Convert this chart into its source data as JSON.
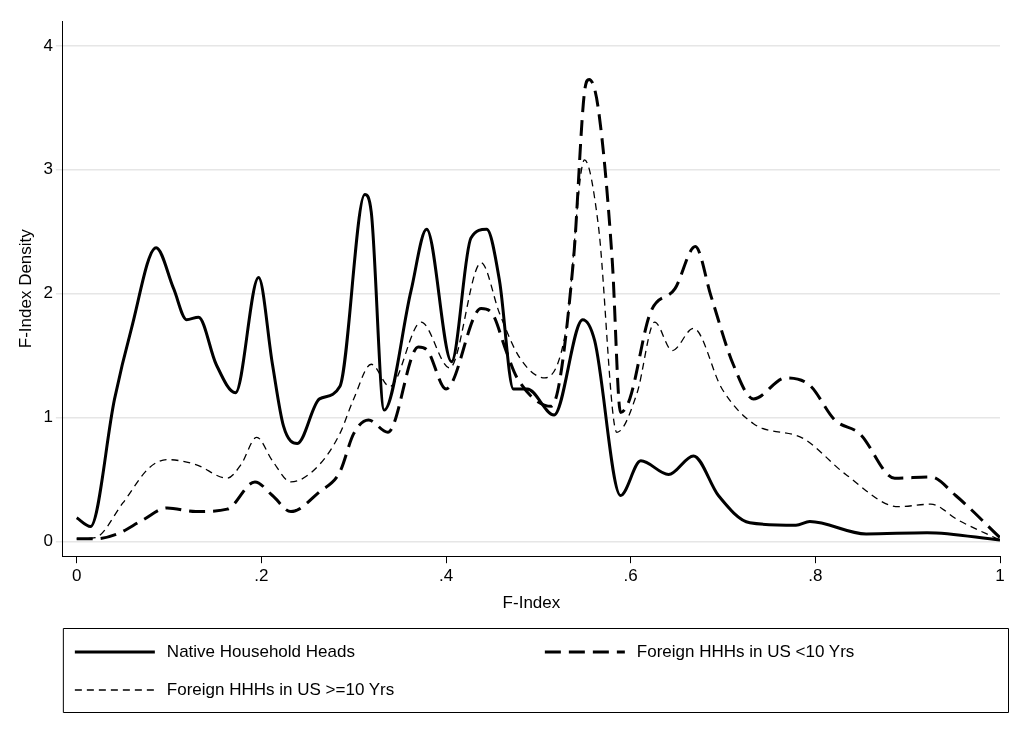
{
  "chart_data": {
    "type": "line",
    "xlabel": "F-Index",
    "ylabel": "F-Index Density",
    "xlim": [
      -0.015,
      1
    ],
    "ylim": [
      -0.12,
      4.2
    ],
    "xticks": [
      0,
      {
        "value": 0.2,
        "label": ".2"
      },
      {
        "value": 0.4,
        "label": ".4"
      },
      {
        "value": 0.6,
        "label": ".6"
      },
      {
        "value": 0.8,
        "label": ".8"
      },
      1
    ],
    "yticks": [
      0,
      1,
      2,
      3,
      4
    ],
    "grid": "y",
    "legend": "bottom",
    "marker": "none",
    "series": [
      {
        "name": "Native Household Heads",
        "color": "#000000",
        "line_style": "solid",
        "x": [
          0,
          0.015,
          0.041,
          0.059,
          0.086,
          0.105,
          0.119,
          0.132,
          0.151,
          0.172,
          0.197,
          0.212,
          0.224,
          0.239,
          0.263,
          0.285,
          0.312,
          0.319,
          0.333,
          0.362,
          0.379,
          0.406,
          0.427,
          0.444,
          0.458,
          0.473,
          0.488,
          0.517,
          0.548,
          0.561,
          0.589,
          0.611,
          0.641,
          0.668,
          0.695,
          0.729,
          0.779,
          0.794,
          0.855,
          0.921,
          1.0
        ],
        "values": [
          0.19,
          0.12,
          1.15,
          1.71,
          2.37,
          2.04,
          1.79,
          1.81,
          1.43,
          1.2,
          2.13,
          1.43,
          0.93,
          0.79,
          1.15,
          1.25,
          2.8,
          2.66,
          1.06,
          2.02,
          2.52,
          1.45,
          2.45,
          2.52,
          2.1,
          1.23,
          1.23,
          1.02,
          1.79,
          1.62,
          0.37,
          0.65,
          0.54,
          0.69,
          0.37,
          0.15,
          0.13,
          0.16,
          0.06,
          0.07,
          0.01
        ]
      },
      {
        "name": "Foreign HHHs in US <10 Yrs",
        "color": "#000000",
        "line_style": "dashed",
        "x": [
          0,
          0.02,
          0.044,
          0.071,
          0.098,
          0.129,
          0.163,
          0.193,
          0.212,
          0.232,
          0.263,
          0.285,
          0.3,
          0.316,
          0.337,
          0.37,
          0.38,
          0.4,
          0.438,
          0.45,
          0.465,
          0.477,
          0.514,
          0.538,
          0.55,
          0.555,
          0.565,
          0.58,
          0.589,
          0.599,
          0.621,
          0.648,
          0.67,
          0.687,
          0.711,
          0.733,
          0.768,
          0.794,
          0.821,
          0.848,
          0.886,
          0.925,
          0.952,
          1.0
        ],
        "values": [
          0.02,
          0.02,
          0.06,
          0.17,
          0.27,
          0.24,
          0.26,
          0.48,
          0.37,
          0.24,
          0.4,
          0.56,
          0.87,
          0.98,
          0.88,
          1.57,
          1.54,
          1.23,
          1.88,
          1.84,
          1.54,
          1.32,
          1.09,
          2.27,
          3.63,
          3.73,
          3.49,
          2.27,
          1.04,
          1.15,
          1.84,
          2.04,
          2.38,
          1.98,
          1.43,
          1.15,
          1.32,
          1.26,
          0.98,
          0.87,
          0.51,
          0.52,
          0.37,
          0.03
        ]
      },
      {
        "name": "Foreign HHHs in US >=10 Yrs",
        "color": "#000000",
        "line_style": "dotted",
        "x": [
          0,
          0.02,
          0.05,
          0.078,
          0.098,
          0.129,
          0.163,
          0.178,
          0.195,
          0.212,
          0.232,
          0.263,
          0.285,
          0.3,
          0.319,
          0.339,
          0.373,
          0.404,
          0.438,
          0.458,
          0.48,
          0.507,
          0.53,
          0.55,
          0.565,
          0.585,
          0.607,
          0.626,
          0.645,
          0.668,
          0.699,
          0.733,
          0.787,
          0.833,
          0.89,
          0.925,
          0.955,
          1.0
        ],
        "values": [
          0.02,
          0.03,
          0.31,
          0.59,
          0.66,
          0.62,
          0.51,
          0.62,
          0.84,
          0.65,
          0.48,
          0.62,
          0.87,
          1.15,
          1.43,
          1.25,
          1.77,
          1.4,
          2.25,
          1.84,
          1.48,
          1.32,
          1.71,
          3.08,
          2.55,
          0.88,
          1.2,
          1.77,
          1.54,
          1.72,
          1.23,
          0.95,
          0.83,
          0.54,
          0.28,
          0.3,
          0.17,
          0.01
        ]
      }
    ]
  }
}
